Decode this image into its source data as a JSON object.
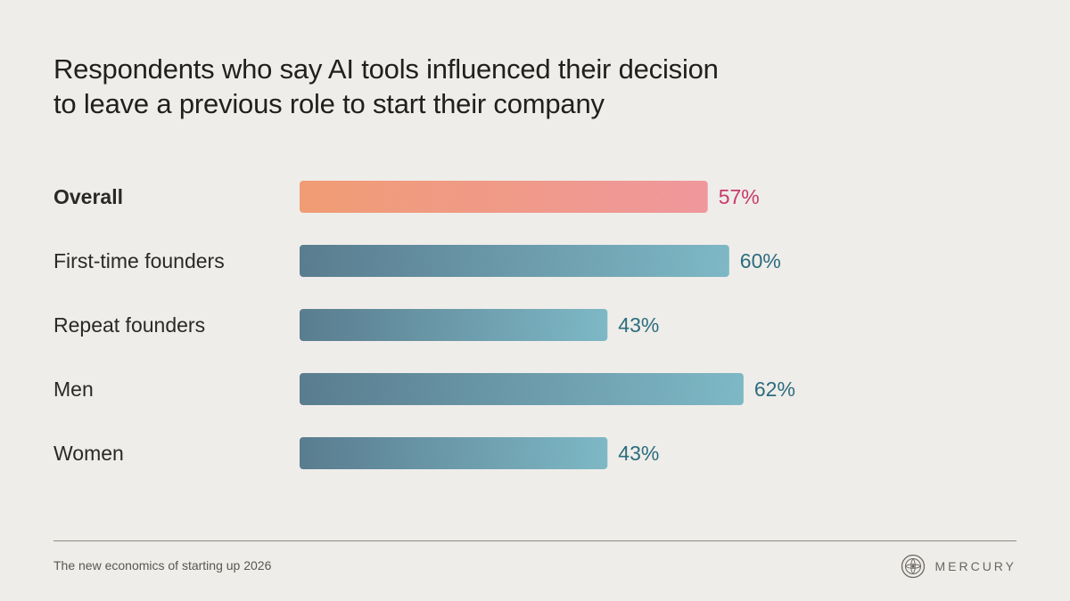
{
  "title": {
    "line1": "Respondents who say AI tools influenced their decision",
    "line2": "to leave a previous role to start their company"
  },
  "chart_data": {
    "type": "bar",
    "orientation": "horizontal",
    "categories": [
      "Overall",
      "First-time founders",
      "Repeat founders",
      "Men",
      "Women"
    ],
    "values": [
      57,
      60,
      43,
      62,
      43
    ],
    "value_labels": [
      "57%",
      "60%",
      "43%",
      "62%",
      "43%"
    ],
    "unit": "%",
    "xlim": [
      0,
      100
    ],
    "grid": false,
    "legend": "none",
    "highlight_category": "Overall",
    "colors": {
      "highlight_start": "#fda57b",
      "highlight_end": "#fca0a5",
      "highlight_text": "#c73a6e",
      "bar_start": "#5f8497",
      "bar_end": "#85c2d0",
      "bar_text": "#2c6c7e"
    }
  },
  "footer": {
    "source": "The new economics of starting up 2026",
    "brand": "MERCURY",
    "brand_icon": "mercury-logo-icon"
  }
}
